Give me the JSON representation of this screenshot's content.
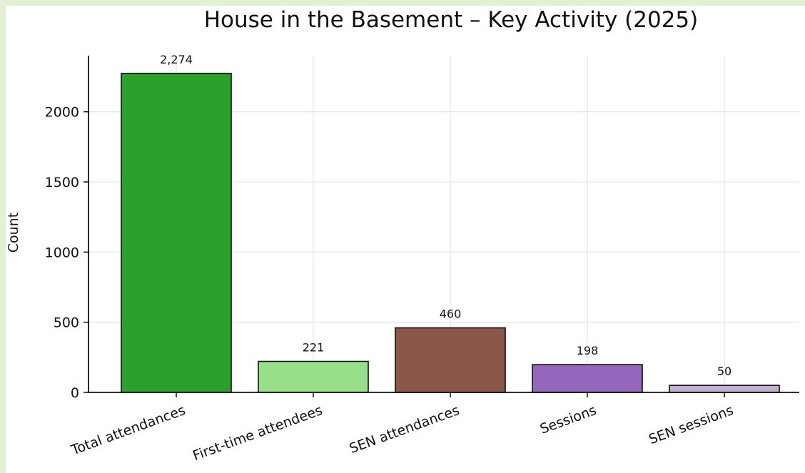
{
  "chart_data": {
    "type": "bar",
    "title": "House in the Basement – Key Activity (2025)",
    "xlabel": "",
    "ylabel": "Count",
    "categories": [
      "Total attendances",
      "First-time attendees",
      "SEN attendances",
      "Sessions",
      "SEN sessions"
    ],
    "values": [
      2274,
      221,
      460,
      198,
      50
    ],
    "data_labels": [
      "2,274",
      "221",
      "460",
      "198",
      "50"
    ],
    "colors": [
      "#2ca02c",
      "#98df8a",
      "#8c564b",
      "#9467bd",
      "#c5b0d5"
    ],
    "ylim": [
      0,
      2400
    ],
    "yticks": [
      0,
      500,
      1000,
      1500,
      2000
    ],
    "ytick_labels": [
      "0",
      "500",
      "1000",
      "1500",
      "2000"
    ],
    "grid": true,
    "legend": "none"
  }
}
